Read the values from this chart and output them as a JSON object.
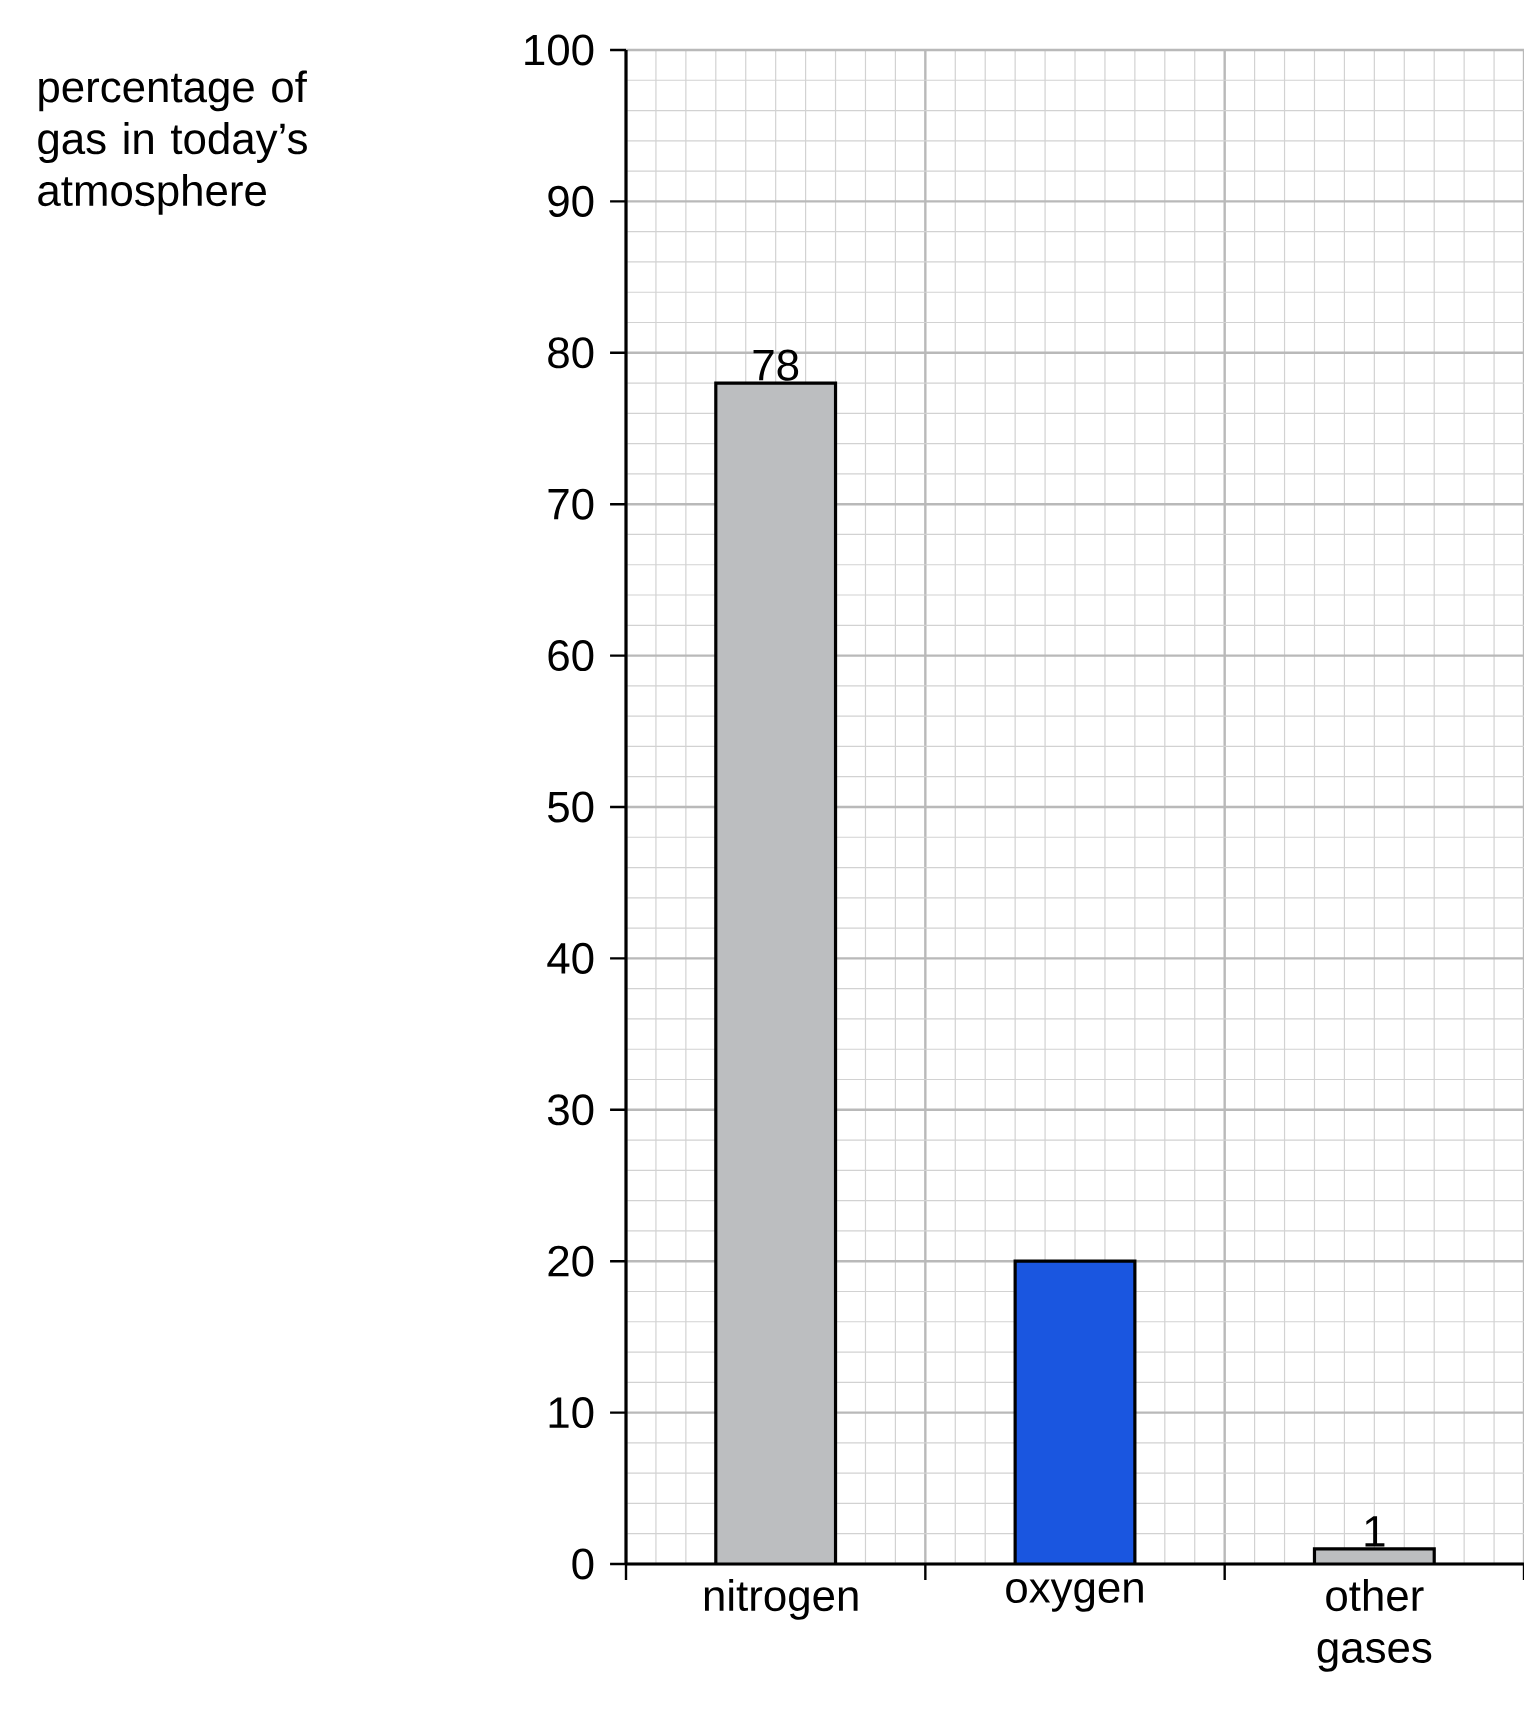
{
  "chart_data": {
    "type": "bar",
    "ylabel": "percentage of gas in today’s atmosphere",
    "categories": [
      "nitrogen",
      "oxygen",
      "other gases"
    ],
    "values": [
      78,
      20,
      1
    ],
    "colors": [
      "#bcbec0",
      "#1a56e0",
      "#bcbec0"
    ],
    "value_labels": [
      "78",
      null,
      "1"
    ],
    "ylim": [
      0,
      100
    ],
    "yticks": [
      0,
      10,
      20,
      30,
      40,
      50,
      60,
      70,
      80,
      90,
      100
    ],
    "grid": true
  }
}
